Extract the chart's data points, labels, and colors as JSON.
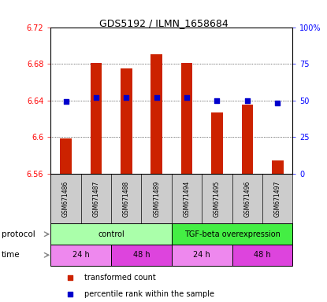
{
  "title": "GDS5192 / ILMN_1658684",
  "samples": [
    "GSM671486",
    "GSM671487",
    "GSM671488",
    "GSM671489",
    "GSM671494",
    "GSM671495",
    "GSM671496",
    "GSM671497"
  ],
  "bar_values": [
    6.598,
    6.681,
    6.675,
    6.69,
    6.681,
    6.627,
    6.635,
    6.574
  ],
  "bar_bottom": 6.56,
  "percentile_values": [
    49,
    52,
    52,
    52,
    52,
    50,
    50,
    48
  ],
  "ylim_left": [
    6.56,
    6.72
  ],
  "ylim_right": [
    0,
    100
  ],
  "yticks_left": [
    6.56,
    6.6,
    6.64,
    6.68,
    6.72
  ],
  "yticks_right": [
    0,
    25,
    50,
    75,
    100
  ],
  "ytick_labels_left": [
    "6.56",
    "6.6",
    "6.64",
    "6.68",
    "6.72"
  ],
  "ytick_labels_right": [
    "0",
    "25",
    "50",
    "75",
    "100%"
  ],
  "bar_color": "#cc2200",
  "dot_color": "#0000cc",
  "protocol_groups": [
    {
      "label": "control",
      "start": 0,
      "end": 4,
      "color": "#aaffaa"
    },
    {
      "label": "TGF-beta overexpression",
      "start": 4,
      "end": 8,
      "color": "#44ee44"
    }
  ],
  "time_groups": [
    {
      "label": "24 h",
      "start": 0,
      "end": 2,
      "color": "#ee88ee"
    },
    {
      "label": "48 h",
      "start": 2,
      "end": 4,
      "color": "#dd44dd"
    },
    {
      "label": "24 h",
      "start": 4,
      "end": 6,
      "color": "#ee88ee"
    },
    {
      "label": "48 h",
      "start": 6,
      "end": 8,
      "color": "#dd44dd"
    }
  ],
  "legend_items": [
    {
      "label": "transformed count",
      "color": "#cc2200"
    },
    {
      "label": "percentile rank within the sample",
      "color": "#0000cc"
    }
  ]
}
